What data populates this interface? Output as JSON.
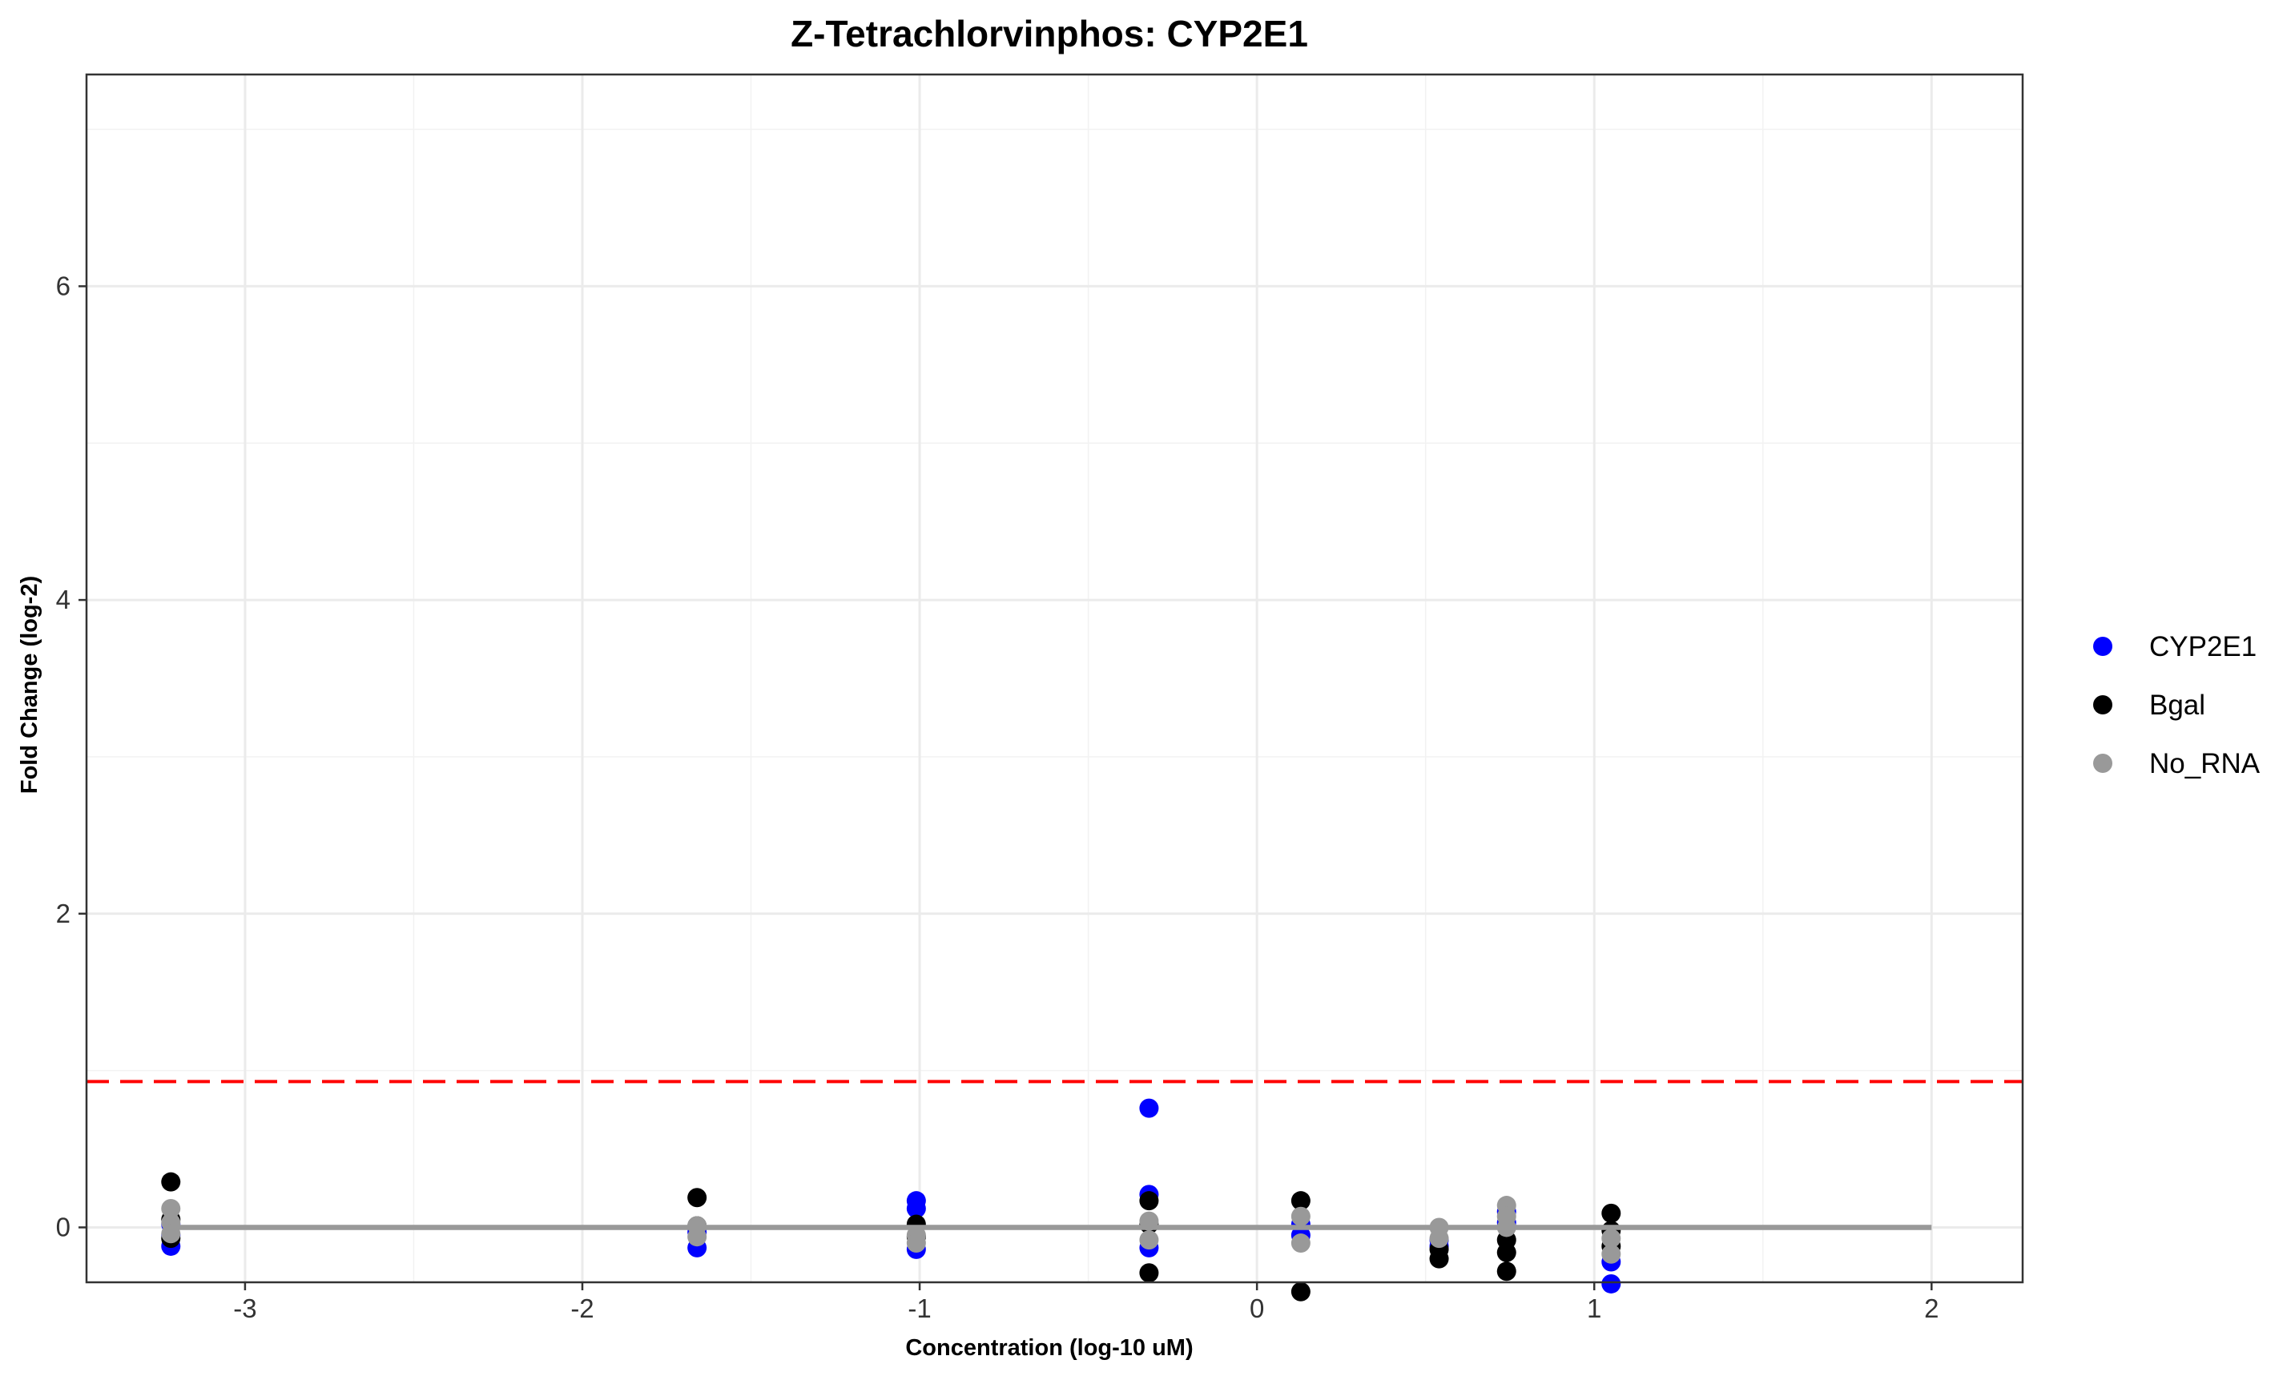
{
  "chart_data": {
    "type": "scatter",
    "title": "Z-Tetrachlorvinphos: CYP2E1",
    "xlabel": "Concentration (log-10 uM)",
    "ylabel": "Fold Change (log-2)",
    "xlim": [
      -3.47,
      2.27
    ],
    "ylim": [
      -0.35,
      7.35
    ],
    "x_ticks": [
      -3,
      -2,
      -1,
      0,
      1,
      2
    ],
    "y_ticks": [
      0,
      2,
      4,
      6
    ],
    "x_tick_labels": [
      "-3",
      "-2",
      "-1",
      "0",
      "1",
      "2"
    ],
    "y_tick_labels": [
      "0",
      "2",
      "4",
      "6"
    ],
    "grid": true,
    "legend_position": "right",
    "threshold_line": {
      "y": 0.93,
      "color": "#FF0000",
      "style": "dashed"
    },
    "baseline_line": {
      "y": 0,
      "x_range": [
        -3.22,
        2.0
      ],
      "color": "#999999"
    },
    "series": [
      {
        "name": "CYP2E1",
        "color": "#0000FF",
        "points": [
          [
            -3.22,
            -0.12
          ],
          [
            -3.22,
            -0.05
          ],
          [
            -3.22,
            0.02
          ],
          [
            -1.66,
            -0.13
          ],
          [
            -1.66,
            -0.03
          ],
          [
            -1.01,
            0.17
          ],
          [
            -1.01,
            0.12
          ],
          [
            -1.01,
            -0.14
          ],
          [
            -0.32,
            0.76
          ],
          [
            -0.32,
            0.21
          ],
          [
            -0.32,
            -0.13
          ],
          [
            0.13,
            0.02
          ],
          [
            0.13,
            -0.05
          ],
          [
            0.54,
            -0.08
          ],
          [
            0.54,
            -0.12
          ],
          [
            0.74,
            0.1
          ],
          [
            0.74,
            0.03
          ],
          [
            1.05,
            -0.22
          ],
          [
            1.05,
            -0.36
          ]
        ]
      },
      {
        "name": "Bgal",
        "color": "#000000",
        "points": [
          [
            -3.22,
            0.29
          ],
          [
            -3.22,
            0.05
          ],
          [
            -3.22,
            -0.07
          ],
          [
            -1.66,
            0.19
          ],
          [
            -1.66,
            0.01
          ],
          [
            -1.01,
            0.02
          ],
          [
            -1.01,
            -0.06
          ],
          [
            -0.32,
            0.17
          ],
          [
            -0.32,
            0.02
          ],
          [
            -0.32,
            -0.29
          ],
          [
            0.13,
            0.17
          ],
          [
            0.13,
            -0.41
          ],
          [
            0.54,
            -0.2
          ],
          [
            0.54,
            -0.14
          ],
          [
            0.74,
            -0.08
          ],
          [
            0.74,
            -0.16
          ],
          [
            0.74,
            -0.28
          ],
          [
            1.05,
            0.09
          ],
          [
            1.05,
            -0.02
          ],
          [
            1.05,
            -0.12
          ]
        ]
      },
      {
        "name": "No_RNA",
        "color": "#999999",
        "points": [
          [
            -3.22,
            0.12
          ],
          [
            -3.22,
            0.03
          ],
          [
            -3.22,
            -0.04
          ],
          [
            -1.66,
            0.01
          ],
          [
            -1.66,
            -0.06
          ],
          [
            -1.01,
            -0.05
          ],
          [
            -1.01,
            -0.1
          ],
          [
            -0.32,
            0.04
          ],
          [
            -0.32,
            -0.08
          ],
          [
            0.13,
            0.07
          ],
          [
            0.13,
            -0.1
          ],
          [
            0.54,
            0.0
          ],
          [
            0.54,
            -0.07
          ],
          [
            0.74,
            0.14
          ],
          [
            0.74,
            0.07
          ],
          [
            0.74,
            0.0
          ],
          [
            1.05,
            -0.07
          ],
          [
            1.05,
            -0.17
          ]
        ]
      }
    ]
  }
}
